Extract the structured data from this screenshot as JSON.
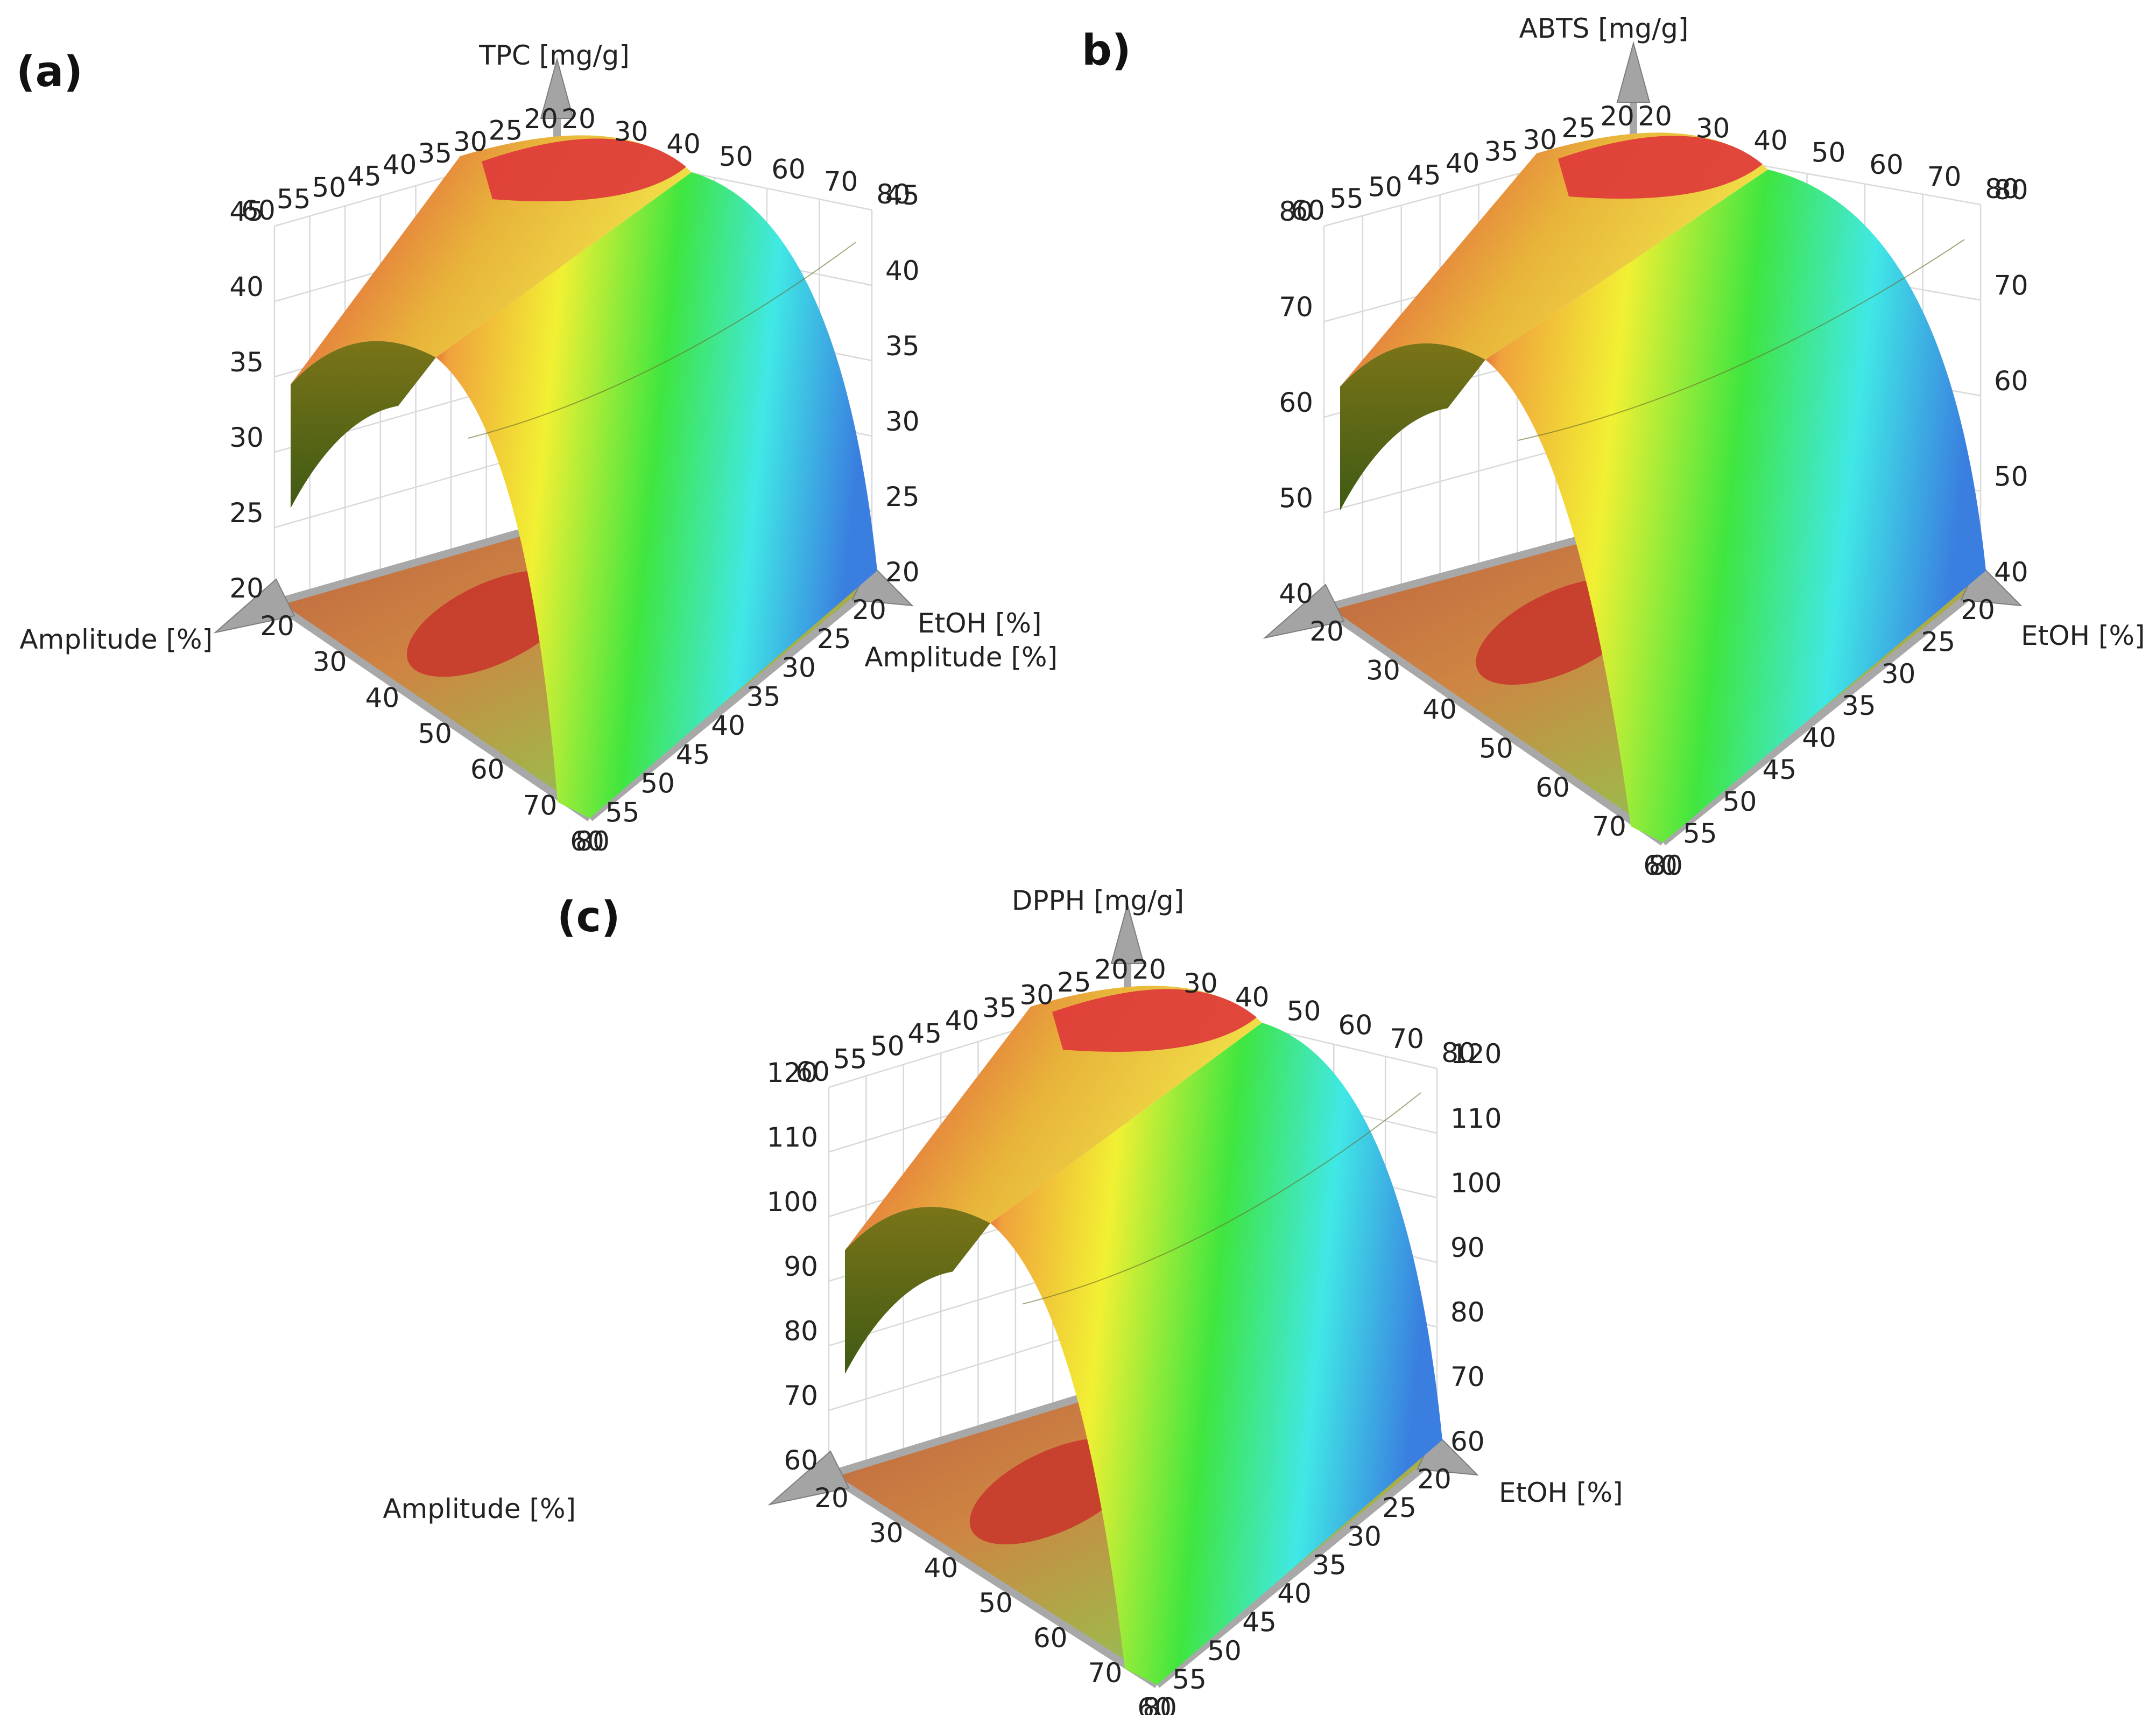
{
  "chart_data": [
    {
      "panel_label": "(a)",
      "type": "surface",
      "zlabel": "TPC [mg/g]",
      "xlabel": "Amplitude [%]",
      "ylabel": "EtOH [%]",
      "x_ticks": [
        "20",
        "30",
        "40",
        "50",
        "60",
        "70",
        "80"
      ],
      "y_ticks": [
        "20",
        "25",
        "30",
        "35",
        "40",
        "45",
        "50",
        "55",
        "60"
      ],
      "back_x_ticks": [
        "20",
        "30",
        "40",
        "50",
        "60",
        "70",
        "80"
      ],
      "back_y_ticks": [
        "60",
        "55",
        "50",
        "45",
        "40",
        "35",
        "30",
        "25",
        "20"
      ],
      "z_ticks": [
        "20",
        "25",
        "30",
        "35",
        "40",
        "45"
      ],
      "xlim": [
        20,
        80
      ],
      "ylim": [
        20,
        60
      ],
      "zlim": [
        20,
        45
      ],
      "surface": {
        "z_peak": 45,
        "z_min": 20,
        "y_optimum": 20,
        "x_effect": "weak"
      }
    },
    {
      "panel_label": "b)",
      "type": "surface",
      "zlabel": "ABTS [mg/g]",
      "xlabel": "Amplitude [%]",
      "ylabel": "EtOH [%]",
      "x_ticks": [
        "20",
        "30",
        "40",
        "50",
        "60",
        "70",
        "80"
      ],
      "y_ticks": [
        "20",
        "25",
        "30",
        "35",
        "40",
        "45",
        "50",
        "55",
        "60"
      ],
      "back_x_ticks": [
        "20",
        "30",
        "40",
        "50",
        "60",
        "70",
        "80"
      ],
      "back_y_ticks": [
        "60",
        "55",
        "50",
        "45",
        "40",
        "35",
        "30",
        "25",
        "20"
      ],
      "z_ticks": [
        "40",
        "50",
        "60",
        "70",
        "80"
      ],
      "xlim": [
        20,
        80
      ],
      "ylim": [
        20,
        60
      ],
      "zlim": [
        40,
        85
      ],
      "surface": {
        "z_peak": 85,
        "z_min": 40,
        "y_optimum": 30,
        "x_effect": "increasing"
      }
    },
    {
      "panel_label": "(c)",
      "type": "surface",
      "zlabel": "DPPH [mg/g]",
      "xlabel": "Amplitude [%]",
      "ylabel": "EtOH [%]",
      "x_ticks": [
        "20",
        "30",
        "40",
        "50",
        "60",
        "70",
        "80"
      ],
      "y_ticks": [
        "20",
        "25",
        "30",
        "35",
        "40",
        "45",
        "50",
        "55",
        "60"
      ],
      "back_x_ticks": [
        "20",
        "30",
        "40",
        "50",
        "60",
        "70",
        "80"
      ],
      "back_y_ticks": [
        "60",
        "55",
        "50",
        "45",
        "40",
        "35",
        "30",
        "25",
        "20"
      ],
      "z_ticks": [
        "60",
        "70",
        "80",
        "90",
        "100",
        "110",
        "120"
      ],
      "xlim": [
        20,
        80
      ],
      "ylim": [
        20,
        60
      ],
      "zlim": [
        60,
        125
      ],
      "surface": {
        "z_peak": 125,
        "z_min": 55,
        "y_optimum": 25,
        "x_effect": "increasing"
      }
    }
  ],
  "colors": {
    "low": "#3a7fe0",
    "cyan": "#40e8e6",
    "green": "#3fe63f",
    "yellow": "#f2f033",
    "orange": "#f0a23c",
    "high": "#de3a3a",
    "underside": "#5f5a14"
  }
}
